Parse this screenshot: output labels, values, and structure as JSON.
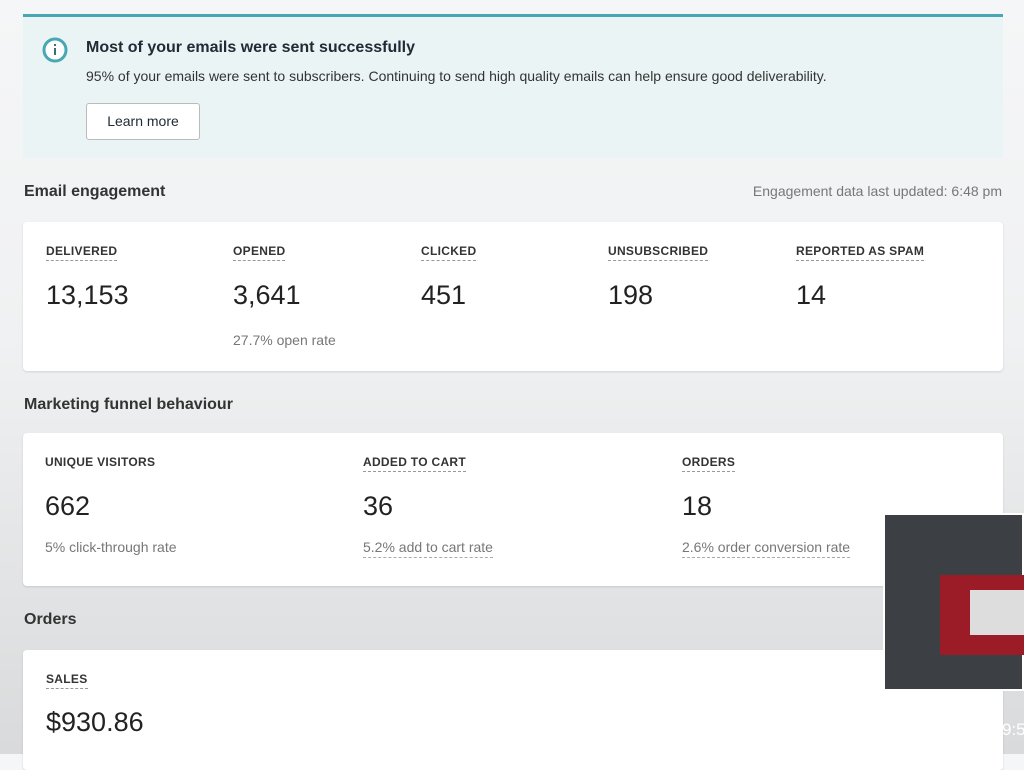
{
  "banner": {
    "title": "Most of your emails were sent successfully",
    "body": "95% of your emails were sent to subscribers. Continuing to send high quality emails can help ensure good deliverability.",
    "button": "Learn more"
  },
  "engagement": {
    "heading": "Email engagement",
    "updated": "Engagement data last updated: 6:48 pm",
    "metrics": [
      {
        "label": "DELIVERED",
        "value": "13,153"
      },
      {
        "label": "OPENED",
        "value": "3,641",
        "note": "27.7% open rate"
      },
      {
        "label": "CLICKED",
        "value": "451"
      },
      {
        "label": "UNSUBSCRIBED",
        "value": "198"
      },
      {
        "label": "REPORTED AS SPAM",
        "value": "14"
      }
    ]
  },
  "funnel": {
    "heading": "Marketing funnel behaviour",
    "metrics": [
      {
        "label": "UNIQUE VISITORS",
        "value": "662",
        "note": "5% click-through rate"
      },
      {
        "label": "ADDED TO CART",
        "value": "36",
        "note": "5.2% add to cart rate"
      },
      {
        "label": "ORDERS",
        "value": "18",
        "note": "2.6% order conversion rate"
      }
    ]
  },
  "orders": {
    "heading": "Orders",
    "metrics": [
      {
        "label": "SALES",
        "value": "$930.86"
      }
    ]
  },
  "overlay": {
    "time": "9:5"
  }
}
